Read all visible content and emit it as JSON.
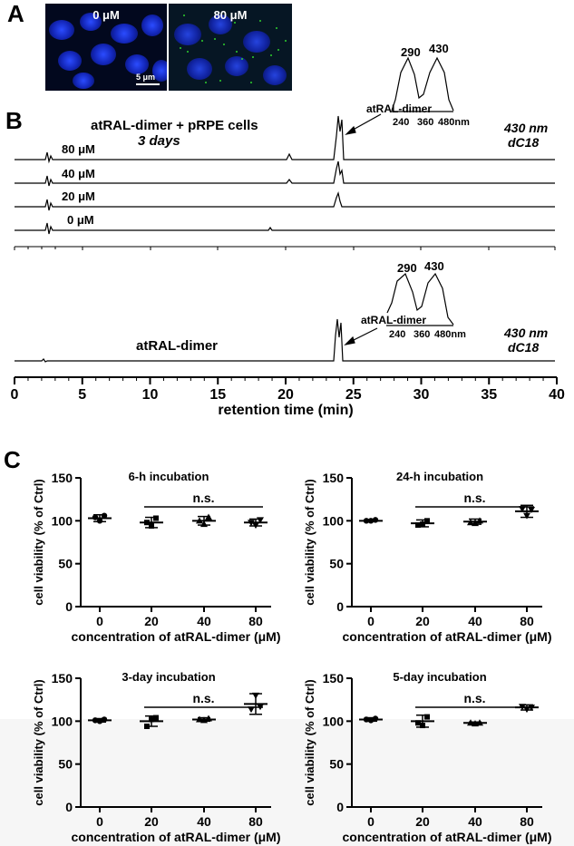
{
  "panelA": {
    "letter": "A",
    "images": [
      {
        "label": "0 μM"
      },
      {
        "label": "80 μM"
      }
    ],
    "scale_bar": "5 μm"
  },
  "panelB": {
    "letter": "B",
    "top_title": "atRAL-dimer + pRPE cells",
    "top_subtitle": "3 days",
    "top_traces": [
      "80 μM",
      "40 μM",
      "20 μM",
      "0 μM"
    ],
    "bottom_label": "atRAL-dimer",
    "detector": "430 nm",
    "column": "dC18",
    "peak_label": "atRAL-dimer",
    "spectrum_peaks": [
      "290",
      "430"
    ],
    "spectrum_ticks": [
      "240",
      "360",
      "480nm"
    ],
    "x_ticks": [
      "0",
      "5",
      "10",
      "15",
      "20",
      "25",
      "30",
      "35",
      "40"
    ],
    "x_label": "retention time (min)"
  },
  "panelC": {
    "letter": "C",
    "y_label": "cell viability (% of Ctrl)",
    "x_label": "concentration of atRAL-dimer (μM)",
    "ns": "n.s."
  },
  "chart_data": [
    {
      "type": "scatter",
      "title": "6-h incubation",
      "xlabel": "concentration of atRAL-dimer (μM)",
      "ylabel": "cell viability (% of Ctrl)",
      "categories": [
        "0",
        "20",
        "40",
        "80"
      ],
      "ylim": [
        0,
        150
      ],
      "yticks": [
        "0",
        "50",
        "100",
        "150"
      ],
      "means": [
        103,
        98,
        100,
        98
      ],
      "errors": [
        4,
        6,
        5,
        4
      ],
      "points": [
        [
          104,
          100,
          106
        ],
        [
          98,
          94,
          103
        ],
        [
          100,
          96,
          104
        ],
        [
          98,
          95,
          101
        ]
      ],
      "significance": {
        "label": "n.s.",
        "from": "20",
        "to": "80"
      }
    },
    {
      "type": "scatter",
      "title": "24-h incubation",
      "xlabel": "concentration of atRAL-dimer (μM)",
      "ylabel": "cell viability (% of Ctrl)",
      "categories": [
        "0",
        "20",
        "40",
        "80"
      ],
      "ylim": [
        0,
        150
      ],
      "yticks": [
        "0",
        "50",
        "100",
        "150"
      ],
      "means": [
        100,
        97,
        99,
        111
      ],
      "errors": [
        1,
        4,
        3,
        7
      ],
      "points": [
        [
          100,
          100,
          101
        ],
        [
          95,
          96,
          100
        ],
        [
          98,
          97,
          100
        ],
        [
          114,
          106,
          113
        ]
      ],
      "significance": {
        "label": "n.s.",
        "from": "20",
        "to": "80"
      }
    },
    {
      "type": "scatter",
      "title": "3-day incubation",
      "xlabel": "concentration of atRAL-dimer (μM)",
      "ylabel": "cell viability (% of Ctrl)",
      "categories": [
        "0",
        "20",
        "40",
        "80"
      ],
      "ylim": [
        0,
        150
      ],
      "yticks": [
        "0",
        "50",
        "100",
        "150"
      ],
      "means": [
        101,
        100,
        102,
        120
      ],
      "errors": [
        2,
        6,
        2,
        12
      ],
      "points": [
        [
          101,
          100,
          102
        ],
        [
          94,
          102,
          104
        ],
        [
          102,
          101,
          103
        ],
        [
          114,
          130,
          117
        ]
      ],
      "significance": {
        "label": "n.s.",
        "from": "20",
        "to": "80"
      }
    },
    {
      "type": "scatter",
      "title": "5-day incubation",
      "xlabel": "concentration of atRAL-dimer (μM)",
      "ylabel": "cell viability (% of Ctrl)",
      "categories": [
        "0",
        "20",
        "40",
        "80"
      ],
      "ylim": [
        0,
        150
      ],
      "yticks": [
        "0",
        "50",
        "100",
        "150"
      ],
      "means": [
        102,
        100,
        98,
        116
      ],
      "errors": [
        2,
        7,
        1,
        3
      ],
      "points": [
        [
          102,
          101,
          103
        ],
        [
          98,
          95,
          105
        ],
        [
          98,
          97,
          98
        ],
        [
          117,
          114,
          116
        ]
      ],
      "significance": {
        "label": "n.s.",
        "from": "20",
        "to": "80"
      }
    }
  ]
}
